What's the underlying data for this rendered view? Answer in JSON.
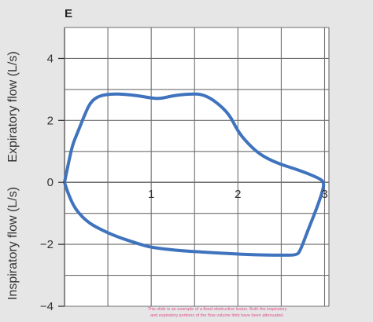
{
  "chart_data": {
    "type": "line",
    "panel_label": "E",
    "title": "",
    "ylabel_upper": "Expiratory flow (L/s)",
    "ylabel_lower": "Inspiratory flow (L/s)",
    "xlabel": "",
    "xlim": [
      0,
      3.05
    ],
    "ylim": [
      -4,
      5
    ],
    "x_ticks": [
      {
        "value": 1,
        "label": "1"
      },
      {
        "value": 2,
        "label": "2"
      },
      {
        "value": 3,
        "label": "3"
      }
    ],
    "y_ticks": [
      {
        "value": 4,
        "label": "4"
      },
      {
        "value": 2,
        "label": "2"
      },
      {
        "value": 0,
        "label": "0"
      },
      {
        "value": -2,
        "label": "−2"
      },
      {
        "value": -4,
        "label": "−4"
      }
    ],
    "grid": true,
    "caption_line1": "This slide is an example of a fixed obstructive lesion. Both the inspiratory",
    "caption_line2": "and expiratory portions of the flow volume limb have been attenuated.",
    "colors": {
      "curve": "#3f73bd",
      "grid": "#6e6e6e",
      "plot_bg": "#ffffff",
      "page_bg": "#e6e6e7",
      "caption": "#e0508a"
    },
    "series": [
      {
        "points": [
          [
            0,
            0
          ],
          [
            0.04,
            0.55
          ],
          [
            0.09,
            1.2
          ],
          [
            0.15,
            1.6
          ],
          [
            0.22,
            2.1
          ],
          [
            0.3,
            2.6
          ],
          [
            0.4,
            2.8
          ],
          [
            0.55,
            2.86
          ],
          [
            0.7,
            2.84
          ],
          [
            0.85,
            2.8
          ],
          [
            1.0,
            2.72
          ],
          [
            1.1,
            2.7
          ],
          [
            1.25,
            2.8
          ],
          [
            1.45,
            2.86
          ],
          [
            1.6,
            2.84
          ],
          [
            1.75,
            2.6
          ],
          [
            1.9,
            2.2
          ],
          [
            2.0,
            1.65
          ],
          [
            2.1,
            1.3
          ],
          [
            2.25,
            0.9
          ],
          [
            2.45,
            0.62
          ],
          [
            2.7,
            0.4
          ],
          [
            2.9,
            0.18
          ],
          [
            3.0,
            0.02
          ],
          [
            2.97,
            -0.35
          ],
          [
            2.9,
            -0.9
          ],
          [
            2.8,
            -1.6
          ],
          [
            2.72,
            -2.2
          ],
          [
            2.68,
            -2.35
          ],
          [
            2.5,
            -2.35
          ],
          [
            2.2,
            -2.34
          ],
          [
            1.9,
            -2.3
          ],
          [
            1.6,
            -2.25
          ],
          [
            1.3,
            -2.2
          ],
          [
            1.0,
            -2.1
          ],
          [
            0.85,
            -1.98
          ],
          [
            0.6,
            -1.75
          ],
          [
            0.4,
            -1.5
          ],
          [
            0.25,
            -1.25
          ],
          [
            0.12,
            -0.85
          ],
          [
            0.04,
            -0.35
          ],
          [
            0,
            0
          ]
        ]
      }
    ]
  }
}
